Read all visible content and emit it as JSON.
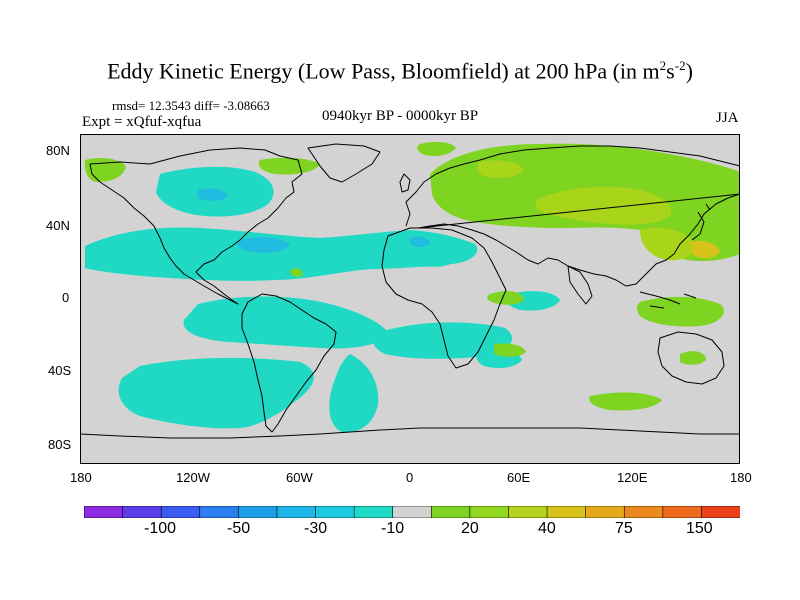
{
  "title": {
    "main": "Eddy Kinetic Energy (Low Pass, Bloomfield) at 200 hPa (in m",
    "sup1": "2",
    "mid": "s",
    "sup2": "-2",
    "end": ")"
  },
  "stats": "rmsd= 12.3543  diff= -3.08663",
  "expt": "Expt = xQfuf-xqfua",
  "period": "0940kyr BP - 0000kyr BP",
  "season": "JJA",
  "map": {
    "lat_labels": [
      "80N",
      "40N",
      "0",
      "40S",
      "80S"
    ],
    "lon_labels": [
      "180",
      "120W",
      "60W",
      "0",
      "60E",
      "120E",
      "180"
    ],
    "background_color": "#d3d3d3",
    "fill_colors": {
      "neg_light": "#1fd9c4",
      "neg_mid": "#20bde0",
      "pos_light": "#7fd321",
      "pos_mid": "#a8d41a",
      "pos_strong": "#d6c21a"
    }
  },
  "colorbar": {
    "colors": [
      "#8a2be2",
      "#5c3fe8",
      "#3b5cf0",
      "#2c7ef0",
      "#1f9ee8",
      "#1eb6e6",
      "#1dcadf",
      "#1fd9c4",
      "#d3d3d3",
      "#7fd321",
      "#93d61f",
      "#b5d11b",
      "#d6c21a",
      "#e6a81c",
      "#ec8a1f",
      "#ee6a1d",
      "#e8401a"
    ],
    "labels": [
      "-100",
      "-50",
      "-30",
      "-10",
      "20",
      "40",
      "75",
      "150"
    ]
  }
}
